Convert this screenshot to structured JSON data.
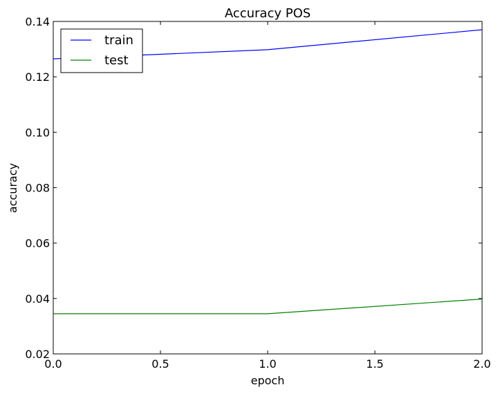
{
  "chart_data": {
    "type": "line",
    "title": "Accuracy POS",
    "xlabel": "epoch",
    "ylabel": "accuracy",
    "xlim": [
      0.0,
      2.0
    ],
    "ylim": [
      0.02,
      0.14
    ],
    "x_ticks": [
      "0.0",
      "0.5",
      "1.0",
      "1.5",
      "2.0"
    ],
    "y_ticks": [
      "0.02",
      "0.04",
      "0.06",
      "0.08",
      "0.10",
      "0.12",
      "0.14"
    ],
    "grid": false,
    "legend_position": "top-left",
    "x": [
      0,
      1,
      2
    ],
    "series": [
      {
        "name": "train",
        "color": "#0000ff",
        "values": [
          0.1265,
          0.1298,
          0.137
        ]
      },
      {
        "name": "test",
        "color": "#008000",
        "values": [
          0.0345,
          0.0345,
          0.0398
        ]
      }
    ]
  }
}
